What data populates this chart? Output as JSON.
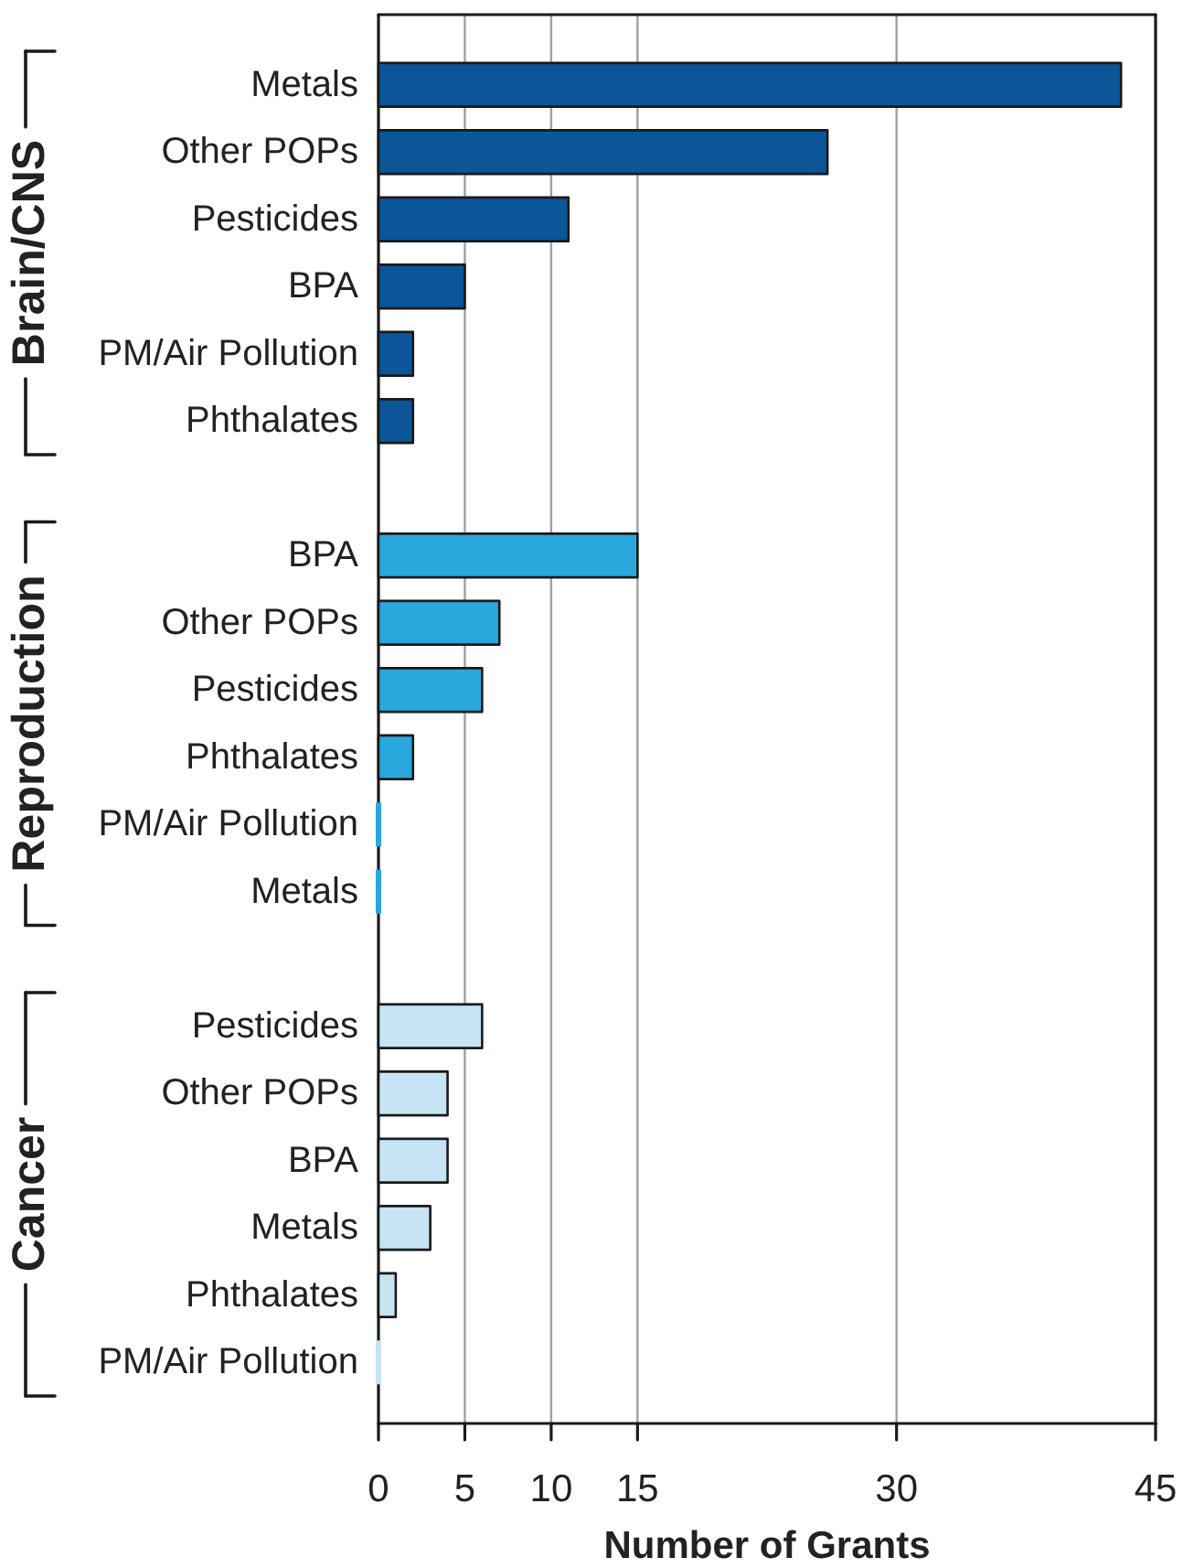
{
  "chart_data": {
    "type": "bar",
    "orientation": "horizontal",
    "categories": [
      "Metals",
      "Other POPs",
      "Pesticides",
      "BPA",
      "PM/Air Pollution",
      "Phthalates",
      null,
      "BPA",
      "Other POPs",
      "Pesticides",
      "Phthalates",
      "PM/Air Pollution",
      "Metals",
      null,
      "Pesticides",
      "Other POPs",
      "BPA",
      "Metals",
      "Phthalates",
      "PM/Air Pollution"
    ],
    "series": [
      {
        "color": "#0b5698",
        "values": [
          43,
          26,
          11,
          5,
          2,
          2,
          null,
          null,
          null,
          null,
          null,
          null,
          null,
          null,
          null,
          null,
          null,
          null,
          null,
          null
        ]
      },
      {
        "color": "#29a8dd",
        "values": [
          null,
          null,
          null,
          null,
          null,
          null,
          null,
          15,
          7,
          6,
          2,
          0,
          0,
          null,
          null,
          null,
          null,
          null,
          null,
          null
        ]
      },
      {
        "color": "#c6e4f4",
        "values": [
          null,
          null,
          null,
          null,
          null,
          null,
          null,
          null,
          null,
          null,
          null,
          null,
          null,
          null,
          6,
          4,
          4,
          3,
          1,
          0
        ]
      }
    ],
    "annotations": [
      "Brain/CNS",
      "Reproduction",
      "Cancer"
    ],
    "xlabel": "Number of Grants",
    "xlim": [
      0,
      45
    ],
    "xticks": [
      0,
      5,
      10,
      15,
      30,
      45
    ],
    "grid": "x"
  }
}
